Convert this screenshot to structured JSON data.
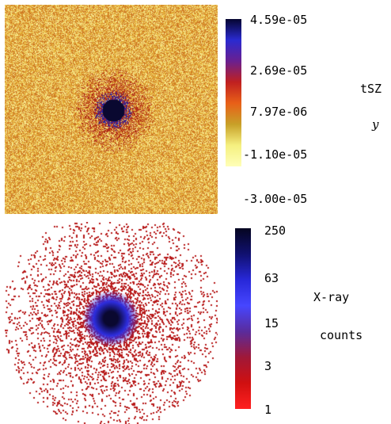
{
  "panels": {
    "tsz": {
      "colorbar": {
        "ticks": [
          "4.59e-05",
          "2.69e-05",
          "7.97e-06",
          "-1.10e-05",
          "-3.00e-05"
        ],
        "colors": [
          "#050530",
          "#2a2ad0",
          "#6a2090",
          "#c02020",
          "#e86018",
          "#c8a028",
          "#f5f080",
          "#ffffb8"
        ]
      },
      "label": {
        "line1": "tSZ",
        "line2": "y"
      },
      "map_colors": {
        "background": "#e6b23c",
        "speckle_light": "#f6e68a",
        "speckle_dark": "#cf7a24",
        "halo": "#b12818",
        "core": "#0a0830",
        "mid": "#2a1fa0"
      }
    },
    "xray": {
      "colorbar": {
        "ticks": [
          "250",
          "63",
          "15",
          "3",
          "1"
        ],
        "colors": [
          "#050520",
          "#101070",
          "#2828d8",
          "#4646ff",
          "#5a2c9c",
          "#a01838",
          "#d01010",
          "#ff2020"
        ]
      },
      "label": {
        "line1": "X-ray",
        "line2": "counts"
      },
      "map_colors": {
        "background": "#ffffff",
        "speckle": "#b81a1a",
        "core": "#0a0830",
        "mid": "#2e2ee0"
      }
    }
  }
}
